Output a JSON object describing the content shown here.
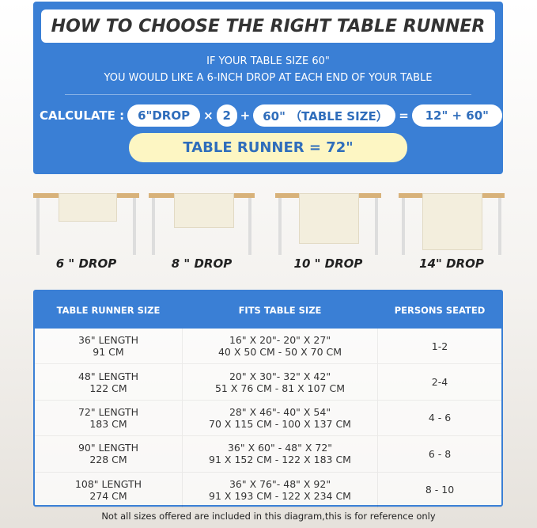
{
  "header": {
    "title": "HOW TO CHOOSE THE RIGHT TABLE RUNNER",
    "line1": "IF YOUR TABLE SIZE 60\"",
    "line2": "YOU WOULD LIKE A 6-INCH DROP AT EACH END OF YOUR TABLE"
  },
  "calc": {
    "label": "CALCULATE :",
    "drop": "6\"DROP",
    "times": "×",
    "two": "2",
    "plus": "+",
    "table": "60\" （TABLE SIZE）",
    "equals": "=",
    "sum": "12\" + 60\"",
    "result": "TABLE RUNNER = 72\""
  },
  "drops": [
    {
      "label": "6 \" DROP"
    },
    {
      "label": "8 \" DROP"
    },
    {
      "label": "10 \" DROP"
    },
    {
      "label": "14\" DROP"
    }
  ],
  "colors": {
    "blue": "#3a7fd5",
    "yellow": "#fdf6c3"
  },
  "table": {
    "headers": [
      "TABLE RUNNER SIZE",
      "FITS TABLE SIZE",
      "PERSONS SEATED"
    ],
    "rows": [
      {
        "size_in": "36\" LENGTH",
        "size_cm": "91 CM",
        "fits_in": "16\" X 20\"- 20\" X 27\"",
        "fits_cm": "40 X 50 CM - 50 X 70 CM",
        "persons": "1-2"
      },
      {
        "size_in": "48\" LENGTH",
        "size_cm": "122 CM",
        "fits_in": "20\" X 30\"- 32\" X 42\"",
        "fits_cm": "51 X 76 CM - 81 X 107 CM",
        "persons": "2-4"
      },
      {
        "size_in": "72\" LENGTH",
        "size_cm": "183 CM",
        "fits_in": "28\" X 46\"- 40\" X 54\"",
        "fits_cm": "70 X 115 CM - 100 X 137 CM",
        "persons": "4 - 6"
      },
      {
        "size_in": "90\" LENGTH",
        "size_cm": "228 CM",
        "fits_in": "36\" X 60\" - 48\" X 72\"",
        "fits_cm": "91 X 152 CM - 122 X 183 CM",
        "persons": "6 - 8"
      },
      {
        "size_in": "108\" LENGTH",
        "size_cm": "274 CM",
        "fits_in": "36\" X 76\"- 48\" X 92\"",
        "fits_cm": "91 X 193 CM - 122 X 234 CM",
        "persons": "8 - 10"
      }
    ]
  },
  "footnote": "Not all sizes offered are included in this diagram,this is for reference only"
}
